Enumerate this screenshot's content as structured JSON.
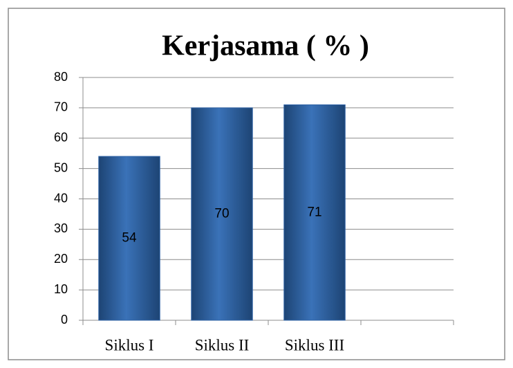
{
  "chart_data": {
    "type": "bar",
    "title": "Kerjasama ( % )",
    "categories": [
      "Siklus I",
      "Siklus II",
      "Siklus III",
      null
    ],
    "values": [
      54,
      70,
      71,
      null
    ],
    "color": "#2f63a6",
    "ylim": [
      0,
      80
    ],
    "yticks": [
      0,
      10,
      20,
      30,
      40,
      50,
      60,
      70,
      80
    ],
    "grid": true
  }
}
